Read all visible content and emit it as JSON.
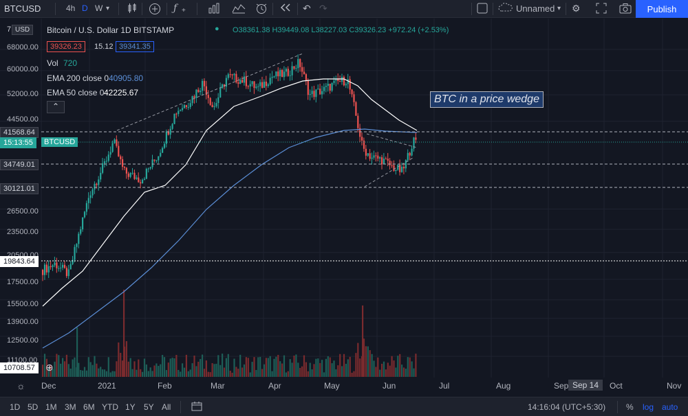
{
  "toolbar": {
    "symbol": "BTCUSD",
    "timeframes": [
      "4h",
      "D",
      "W"
    ],
    "active_timeframe": "D",
    "layout_name": "Unnamed",
    "publish_label": "Publish"
  },
  "legend": {
    "title": "Bitcoin / U.S. Dollar  1D  BITSTAMP",
    "ohlc": "O38361.38 H39449.08 L38227.03 C39326.23 +972.24 (+2.53%)",
    "bid": "39326.23",
    "spread": "15.12",
    "ask": "39341.35",
    "vol_label": "Vol",
    "vol_value": "720",
    "ema200_label": "EMA 200 close 0",
    "ema200_value": "40905.80",
    "ema50_label": "EMA 50 close 0",
    "ema50_value": "42225.67"
  },
  "price_axis": {
    "currency": "USD",
    "top_partial": "7",
    "ticks": [
      "68000.00",
      "60000.00",
      "52000.00",
      "44500.00",
      "26500.00",
      "23500.00",
      "20500.00",
      "17500.00",
      "15500.00",
      "13900.00",
      "12500.00",
      "11100.00"
    ],
    "markers": [
      {
        "value": "41568.64"
      },
      {
        "value": "15:13:55",
        "label": "BTCUSD"
      },
      {
        "value": "34749.01"
      },
      {
        "value": "30121.01"
      },
      {
        "value": "19843.64"
      },
      {
        "value": "10708.57"
      }
    ]
  },
  "time_axis": [
    "Dec",
    "2021",
    "Feb",
    "Mar",
    "Apr",
    "May",
    "Jun",
    "Jul",
    "Aug",
    "Sep",
    "Sep 14",
    "Oct",
    "Nov"
  ],
  "annotation": "BTC in a price wedge",
  "bottom": {
    "ranges": [
      "1D",
      "5D",
      "1M",
      "3M",
      "6M",
      "YTD",
      "1Y",
      "5Y",
      "All"
    ],
    "clock": "14:16:04 (UTC+5:30)",
    "percent": "%",
    "log": "log",
    "auto": "auto"
  },
  "colors": {
    "background": "#131722",
    "up": "#26a69a",
    "down": "#ef5350",
    "ema50": "#ffffff",
    "ema200": "#5b8ed6",
    "accent": "#2962ff"
  },
  "chart_data": {
    "type": "candlestick",
    "price_scale": "log",
    "ylim": [
      10500,
      72000
    ],
    "x_range": [
      "Nov 2020",
      "Nov 2021"
    ],
    "candles_approx": [
      {
        "date": "Dec 2020",
        "o": 18500,
        "h": 19800,
        "l": 17600,
        "c": 19200
      },
      {
        "date": "Dec 2020",
        "o": 19200,
        "h": 24000,
        "l": 18700,
        "c": 23500
      },
      {
        "date": "Jan 2021",
        "o": 29000,
        "h": 41500,
        "l": 28700,
        "c": 34000
      },
      {
        "date": "Feb 2021",
        "o": 33000,
        "h": 58000,
        "l": 32300,
        "c": 45000
      },
      {
        "date": "Mar 2021",
        "o": 45000,
        "h": 61700,
        "l": 44900,
        "c": 58700
      },
      {
        "date": "Apr 2021",
        "o": 58700,
        "h": 64800,
        "l": 47000,
        "c": 57700
      },
      {
        "date": "May 2021",
        "o": 57700,
        "h": 59500,
        "l": 30000,
        "c": 37300
      },
      {
        "date": "Jun 2021",
        "o": 37300,
        "h": 41300,
        "l": 31100,
        "c": 39326
      }
    ],
    "ema50_approx": [
      15200,
      19000,
      30000,
      42000,
      53000,
      55000,
      47000,
      41500
    ],
    "ema200_approx": [
      11500,
      14000,
      19000,
      25000,
      32000,
      38000,
      41000,
      40900
    ],
    "volume_peaks": [
      "Jan 2021",
      "May 2021"
    ]
  }
}
